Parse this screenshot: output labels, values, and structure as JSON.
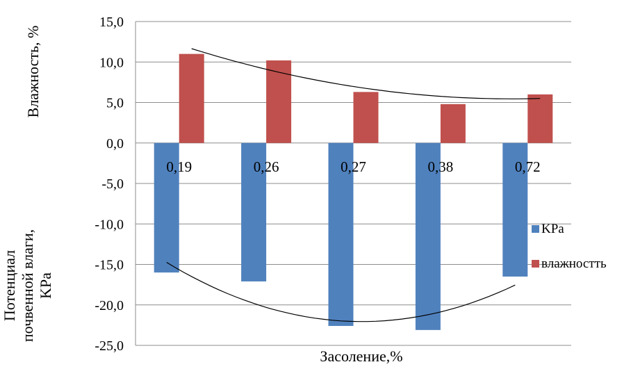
{
  "chart_data": {
    "type": "bar",
    "y_axis_label_top": "Влажность, %",
    "y_axis_label_bottom": [
      "Потенциал",
      "почвенной влаги,",
      "KPa"
    ],
    "xlabel": "Засоление,%",
    "ylim": [
      -25,
      15
    ],
    "yticks": [
      15,
      10,
      5,
      0,
      -5,
      -10,
      -15,
      -20,
      -25
    ],
    "ytick_labels": [
      "15,0",
      "10,0",
      "5,0",
      "0,0",
      "-5,0",
      "-10,0",
      "-15,0",
      "-20,0",
      "-25,0"
    ],
    "categories": [
      "0,19",
      "0,26",
      "0,27",
      "0,38",
      "0,72"
    ],
    "series": [
      {
        "name": "KPa",
        "color": "#4F81BD",
        "values": [
          -16.0,
          -17.1,
          -22.6,
          -23.1,
          -16.5
        ]
      },
      {
        "name": "влажностть",
        "color": "#C0504D",
        "values": [
          11.0,
          10.2,
          6.3,
          4.8,
          6.0
        ]
      }
    ],
    "trendlines": "polynomial, black",
    "grid": true,
    "legend_position": "right"
  }
}
